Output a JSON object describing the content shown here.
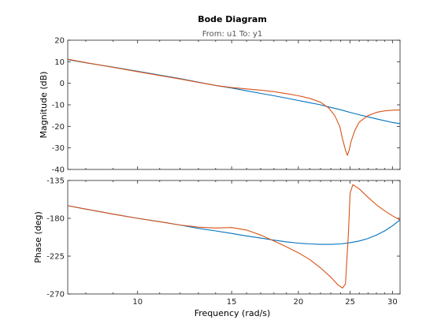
{
  "chart_data": {
    "type": "line",
    "title": "Bode Diagram",
    "subtitle": "From: u1  To: y1",
    "xlabel": "Frequency  (rad/s)",
    "x_scale": "log",
    "xlim": [
      7.4,
      31
    ],
    "xticks": [
      10,
      15,
      20,
      25,
      30
    ],
    "xtick_labels": [
      "10",
      "15",
      "20",
      "25",
      "30"
    ],
    "colors": {
      "series1": "#0072BD",
      "series2": "#D95319",
      "axis": "#262626"
    },
    "panels": [
      {
        "id": "magnitude",
        "ylabel": "Magnitude (dB)",
        "ylim": [
          -40,
          20
        ],
        "yticks": [
          20,
          10,
          0,
          -10,
          -20,
          -30,
          -40
        ],
        "ytick_labels": [
          "20",
          "10",
          "0",
          "-10",
          "-20",
          "-30",
          "-40"
        ],
        "series": [
          {
            "color": "#0072BD",
            "points": [
              [
                7.4,
                11
              ],
              [
                8,
                9.5
              ],
              [
                9,
                7.5
              ],
              [
                10,
                5.6
              ],
              [
                11,
                3.8
              ],
              [
                12,
                2.2
              ],
              [
                13,
                0.5
              ],
              [
                14,
                -1
              ],
              [
                15,
                -2.2
              ],
              [
                16,
                -3.5
              ],
              [
                17,
                -4.7
              ],
              [
                18,
                -5.8
              ],
              [
                19,
                -6.9
              ],
              [
                20,
                -8
              ],
              [
                21,
                -9
              ],
              [
                22,
                -10
              ],
              [
                23,
                -11.2
              ],
              [
                24,
                -12.3
              ],
              [
                25,
                -13.5
              ],
              [
                26,
                -14.6
              ],
              [
                27,
                -15.6
              ],
              [
                28,
                -16.5
              ],
              [
                29,
                -17.4
              ],
              [
                30,
                -18.2
              ],
              [
                31,
                -18.7
              ]
            ]
          },
          {
            "color": "#D95319",
            "points": [
              [
                7.4,
                11.2
              ],
              [
                8,
                9.6
              ],
              [
                9,
                7.4
              ],
              [
                10,
                5.4
              ],
              [
                11,
                3.6
              ],
              [
                12,
                2
              ],
              [
                13,
                0.4
              ],
              [
                14,
                -1
              ],
              [
                15,
                -2
              ],
              [
                16,
                -2.6
              ],
              [
                17,
                -3.2
              ],
              [
                18,
                -3.9
              ],
              [
                19,
                -4.8
              ],
              [
                20,
                -5.8
              ],
              [
                21,
                -7
              ],
              [
                22,
                -8.8
              ],
              [
                22.8,
                -11.5
              ],
              [
                23.4,
                -15
              ],
              [
                23.9,
                -20
              ],
              [
                24.2,
                -26
              ],
              [
                24.5,
                -31
              ],
              [
                24.7,
                -33.5
              ],
              [
                24.9,
                -31
              ],
              [
                25.1,
                -27
              ],
              [
                25.5,
                -22
              ],
              [
                26,
                -18
              ],
              [
                27,
                -15
              ],
              [
                28,
                -13.5
              ],
              [
                29,
                -12.8
              ],
              [
                30,
                -12.5
              ],
              [
                31,
                -12.4
              ]
            ]
          }
        ]
      },
      {
        "id": "phase",
        "ylabel": "Phase (deg)",
        "ylim": [
          -270,
          -135
        ],
        "yticks": [
          -135,
          -180,
          -225,
          -270
        ],
        "ytick_labels": [
          "-135",
          "-180",
          "-225",
          "-270"
        ],
        "series": [
          {
            "color": "#0072BD",
            "points": [
              [
                7.4,
                -165
              ],
              [
                8,
                -169
              ],
              [
                9,
                -175
              ],
              [
                10,
                -180
              ],
              [
                11,
                -184
              ],
              [
                12,
                -188
              ],
              [
                13,
                -192
              ],
              [
                14,
                -195
              ],
              [
                15,
                -198
              ],
              [
                16,
                -201
              ],
              [
                17,
                -203.5
              ],
              [
                18,
                -206
              ],
              [
                19,
                -208
              ],
              [
                20,
                -209.5
              ],
              [
                21,
                -210.5
              ],
              [
                22,
                -211
              ],
              [
                23,
                -211
              ],
              [
                24,
                -210.5
              ],
              [
                25,
                -209
              ],
              [
                26,
                -207
              ],
              [
                27,
                -204
              ],
              [
                28,
                -200
              ],
              [
                29,
                -195
              ],
              [
                30,
                -189
              ],
              [
                31,
                -182
              ]
            ]
          },
          {
            "color": "#D95319",
            "points": [
              [
                7.4,
                -165
              ],
              [
                8,
                -169
              ],
              [
                9,
                -175
              ],
              [
                10,
                -180
              ],
              [
                11,
                -184
              ],
              [
                12,
                -188
              ],
              [
                13,
                -190.5
              ],
              [
                14,
                -191.5
              ],
              [
                15,
                -191
              ],
              [
                16,
                -194
              ],
              [
                17,
                -200
              ],
              [
                18,
                -207
              ],
              [
                19,
                -214
              ],
              [
                20,
                -221
              ],
              [
                21,
                -229
              ],
              [
                22,
                -239
              ],
              [
                23,
                -250
              ],
              [
                23.7,
                -259
              ],
              [
                24.2,
                -263
              ],
              [
                24.5,
                -258
              ],
              [
                24.8,
                -200
              ],
              [
                25,
                -150
              ],
              [
                25.3,
                -140
              ],
              [
                26,
                -145
              ],
              [
                27,
                -155
              ],
              [
                28,
                -164
              ],
              [
                29,
                -171
              ],
              [
                30,
                -177
              ],
              [
                31,
                -182
              ]
            ]
          }
        ]
      }
    ]
  }
}
